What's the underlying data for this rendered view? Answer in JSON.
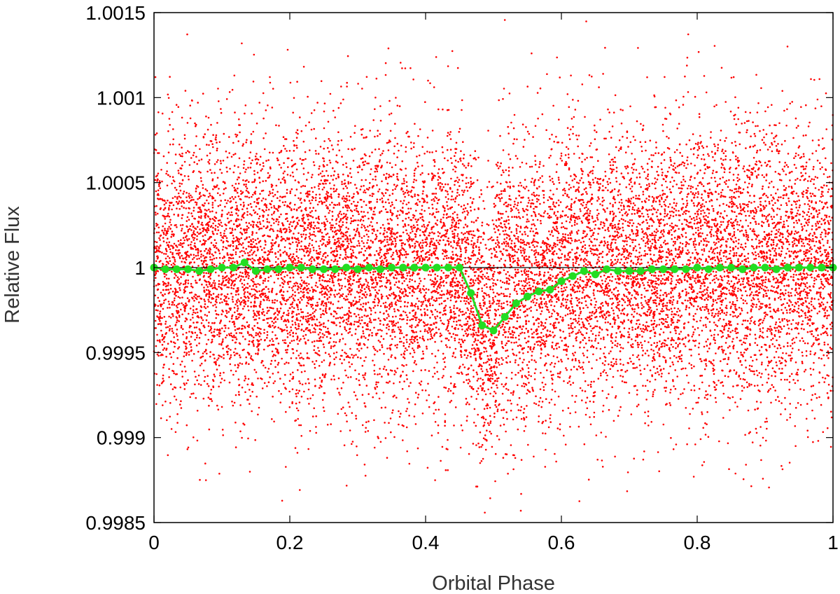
{
  "chart_data": {
    "type": "scatter",
    "title": "",
    "xlabel": "Orbital Phase",
    "ylabel": "Relative Flux",
    "xlim": [
      0,
      1
    ],
    "ylim": [
      0.9985,
      1.0015
    ],
    "x_ticks": [
      0,
      0.2,
      0.4,
      0.6,
      0.8,
      1
    ],
    "x_tick_labels": [
      "0",
      "0.2",
      "0.4",
      "0.6",
      "0.8",
      "1"
    ],
    "y_ticks": [
      0.9985,
      0.999,
      0.9995,
      1,
      1.0005,
      1.001,
      1.0015
    ],
    "y_tick_labels": [
      "0.9985",
      "0.999",
      "0.9995",
      "1",
      "1.0005",
      "1.001",
      "1.0015"
    ],
    "grid": false,
    "legend": "none",
    "reference_line": {
      "y": 1.0,
      "color": "#000000"
    },
    "series": [
      {
        "kind": "scatter",
        "color": "#ff0000",
        "description_points": "dense raw photometry, approx. 40000 points",
        "baseline_mean": 1.0,
        "baseline_scatter_sd": 0.0004,
        "transit_center": 0.49,
        "transit_depth": 0.00035
      },
      {
        "kind": "line+markers",
        "color": "#22dd22",
        "x": [
          0.0,
          0.0167,
          0.0333,
          0.05,
          0.0667,
          0.0833,
          0.1,
          0.1167,
          0.1333,
          0.15,
          0.1667,
          0.1833,
          0.2,
          0.2167,
          0.2333,
          0.25,
          0.2667,
          0.2833,
          0.3,
          0.3167,
          0.3333,
          0.35,
          0.3667,
          0.3833,
          0.4,
          0.4167,
          0.4333,
          0.45,
          0.4667,
          0.4833,
          0.5,
          0.5167,
          0.5333,
          0.55,
          0.5667,
          0.5833,
          0.6,
          0.6167,
          0.6333,
          0.65,
          0.6667,
          0.6833,
          0.7,
          0.7167,
          0.7333,
          0.75,
          0.7667,
          0.7833,
          0.8,
          0.8167,
          0.8333,
          0.85,
          0.8667,
          0.8833,
          0.9,
          0.9167,
          0.9333,
          0.95,
          0.9667,
          0.9833,
          1.0
        ],
        "y": [
          1.0,
          0.99999,
          0.99999,
          0.99999,
          0.99998,
          0.99999,
          1.0,
          1.0,
          1.00003,
          0.99998,
          0.99999,
          0.99999,
          1.0,
          1.0,
          0.99999,
          0.99999,
          0.99999,
          1.0,
          0.99999,
          1.0,
          0.99999,
          1.0,
          1.0,
          1.0,
          1.0,
          1.0,
          1.0,
          1.0,
          0.99985,
          0.99966,
          0.99963,
          0.99971,
          0.99979,
          0.99983,
          0.99986,
          0.99987,
          0.99992,
          0.99995,
          0.99998,
          0.99996,
          0.99999,
          0.99998,
          0.99998,
          0.99998,
          0.99999,
          0.99999,
          0.99999,
          0.99999,
          1.0,
          0.99999,
          1.0,
          1.0,
          0.99999,
          1.0,
          1.0,
          0.99999,
          1.0,
          1.0,
          1.0,
          1.0,
          1.0
        ]
      }
    ]
  }
}
